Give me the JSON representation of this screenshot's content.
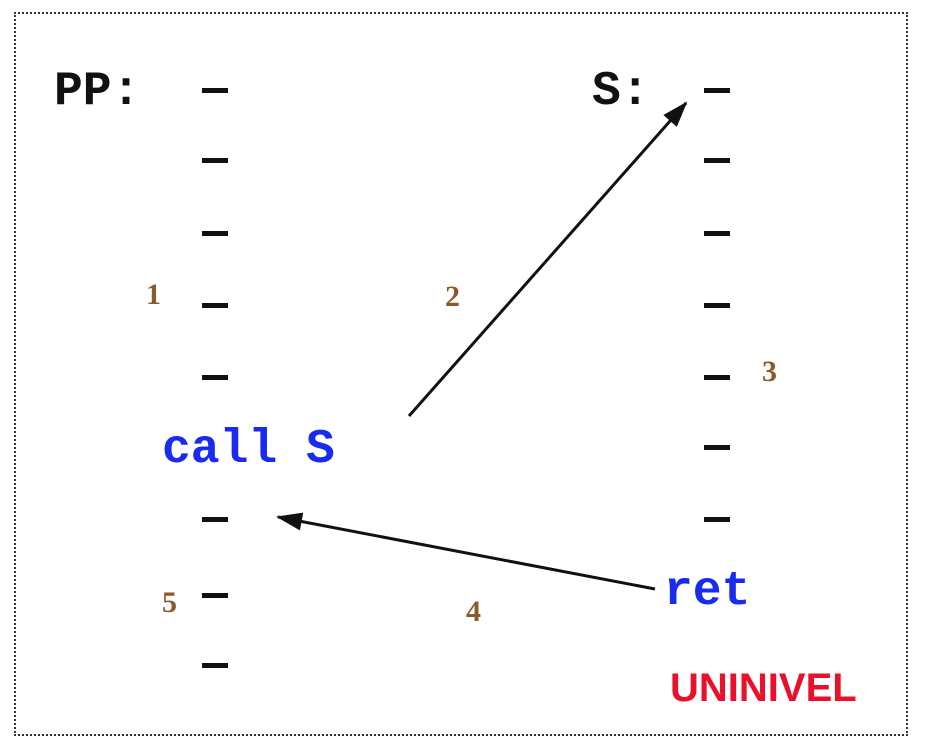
{
  "colors": {
    "text": "#111111",
    "instruction": "#1a2bf0",
    "step_number": "#8b5a2b",
    "tag": "#e8102a",
    "frame": "#333333"
  },
  "caller": {
    "label": "PP:",
    "call_instruction": "call S"
  },
  "subroutine": {
    "label": "S:",
    "return_instruction": "ret"
  },
  "steps": [
    "1",
    "2",
    "3",
    "4",
    "5"
  ],
  "tag": "UNINIVEL"
}
